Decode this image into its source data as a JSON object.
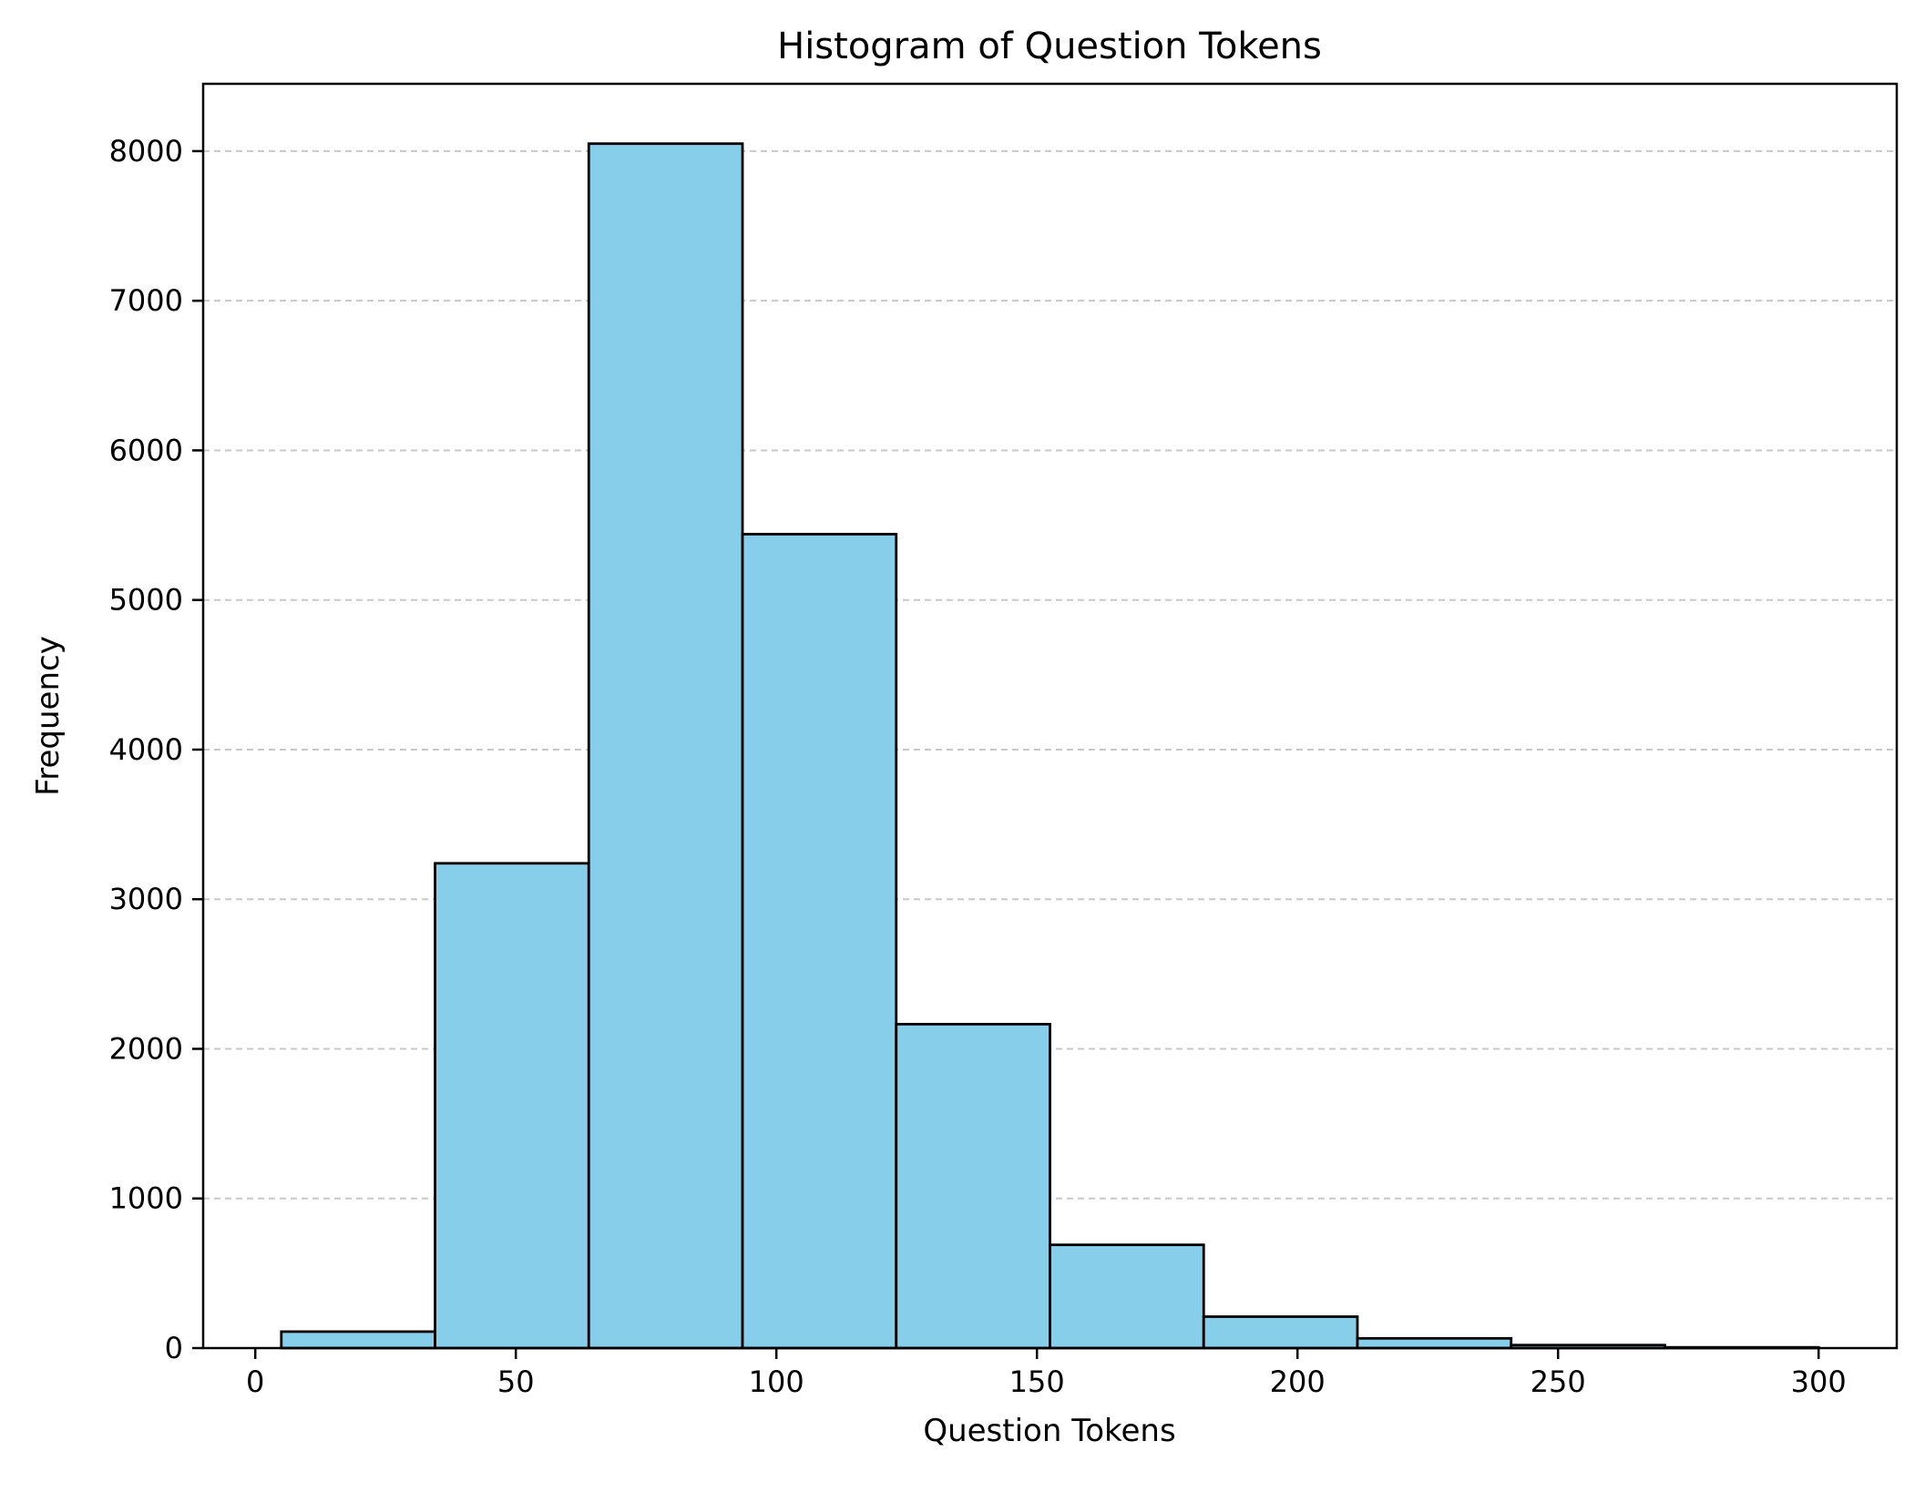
{
  "chart_data": {
    "type": "bar",
    "title": "Histogram of Question Tokens",
    "xlabel": "Question Tokens",
    "ylabel": "Frequency",
    "xlim": [
      -10,
      315
    ],
    "ylim": [
      0,
      8450
    ],
    "x_ticks": [
      0,
      50,
      100,
      150,
      200,
      250,
      300
    ],
    "y_ticks": [
      0,
      1000,
      2000,
      3000,
      4000,
      5000,
      6000,
      7000,
      8000
    ],
    "grid": {
      "axis": "y",
      "style": "dashed",
      "color": "#c8c8c8"
    },
    "bar_color": "#87ceeb",
    "edge_color": "#000000",
    "bin_edges": [
      5,
      34.5,
      64,
      93.5,
      123,
      152.5,
      182,
      211.5,
      241,
      270.5,
      300
    ],
    "values": [
      110,
      3240,
      8050,
      5440,
      2165,
      690,
      210,
      65,
      20,
      5
    ]
  }
}
